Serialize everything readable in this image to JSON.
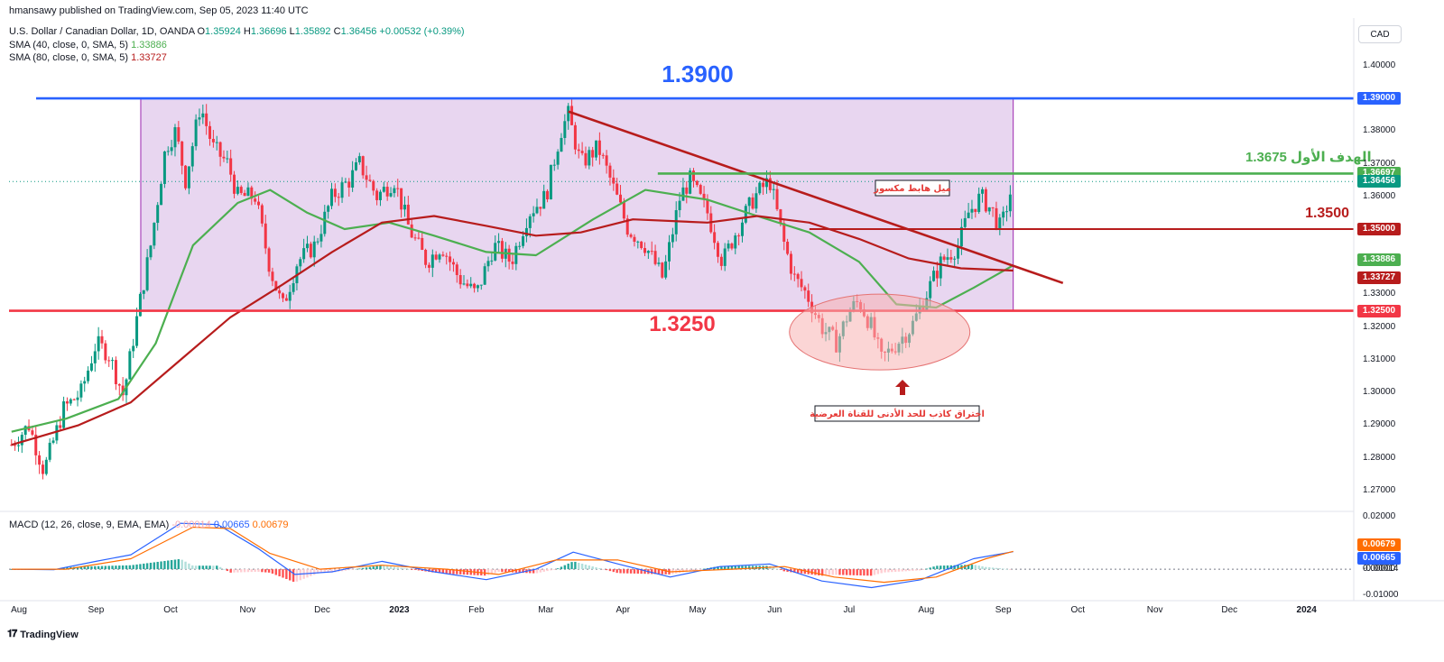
{
  "header": {
    "published": "hmansawy published on TradingView.com, Sep 05, 2023 11:40 UTC",
    "symbol": "U.S. Dollar / Canadian Dollar, 1D, OANDA",
    "o_label": "O",
    "o": "1.35924",
    "h_label": "H",
    "h": "1.36696",
    "l_label": "L",
    "l": "1.35892",
    "c_label": "C",
    "c": "1.36456",
    "change": "+0.00532 (+0.39%)",
    "sma40_label": "SMA (40, close, 0, SMA, 5)",
    "sma40_value": "1.33886",
    "sma80_label": "SMA (80, close, 0, SMA, 5)",
    "sma80_value": "1.33727",
    "macd_label": "MACD (12, 26, close, 9, EMA, EMA)",
    "macd_hist": "-0.00014",
    "macd_line": "0.00665",
    "macd_signal": "0.00679"
  },
  "currency_button": "CAD",
  "brand": "TradingView",
  "colors": {
    "up": "#089981",
    "down": "#f23645",
    "channel_fill": "#d6b4e4",
    "line_1390": "#2962ff",
    "line_13675": "#4caf50",
    "line_1350": "#b71c1c",
    "line_1325": "#f23645",
    "sma40": "#4caf50",
    "sma80": "#b71c1c",
    "trendline": "#b71c1c",
    "macd": "#2962ff",
    "signal": "#ff6d00"
  },
  "chart_data": {
    "type": "candlestick",
    "y_axis": {
      "range": [
        1.265,
        1.403
      ],
      "ticks": [
        "1.40000",
        "1.39000",
        "1.38000",
        "1.37000",
        "1.36000",
        "1.35000",
        "1.34000",
        "1.33000",
        "1.32000",
        "1.31000",
        "1.30000",
        "1.29000",
        "1.28000",
        "1.27000"
      ]
    },
    "x_axis": {
      "ticks": [
        {
          "label": "Aug",
          "date": "2022-08-01"
        },
        {
          "label": "Sep",
          "date": "2022-09-01"
        },
        {
          "label": "Oct",
          "date": "2022-10-01"
        },
        {
          "label": "Nov",
          "date": "2022-11-01"
        },
        {
          "label": "Dec",
          "date": "2022-12-01"
        },
        {
          "label": "2023",
          "date": "2023-01-01",
          "bold": true
        },
        {
          "label": "Feb",
          "date": "2023-02-01"
        },
        {
          "label": "Mar",
          "date": "2023-03-01"
        },
        {
          "label": "Apr",
          "date": "2023-04-01"
        },
        {
          "label": "May",
          "date": "2023-05-01"
        },
        {
          "label": "Jun",
          "date": "2023-06-01"
        },
        {
          "label": "Jul",
          "date": "2023-07-01"
        },
        {
          "label": "Aug",
          "date": "2023-08-01"
        },
        {
          "label": "Sep",
          "date": "2023-09-01"
        },
        {
          "label": "Oct",
          "date": "2023-10-01"
        },
        {
          "label": "Nov",
          "date": "2023-11-01"
        },
        {
          "label": "Dec",
          "date": "2023-12-01"
        },
        {
          "label": "2024",
          "date": "2024-01-01",
          "bold": true
        }
      ]
    },
    "price_path": [
      [
        "2022-07-29",
        1.284
      ],
      [
        "2022-08-05",
        1.29
      ],
      [
        "2022-08-11",
        1.276
      ],
      [
        "2022-08-19",
        1.295
      ],
      [
        "2022-08-26",
        1.3
      ],
      [
        "2022-09-01",
        1.315
      ],
      [
        "2022-09-06",
        1.312
      ],
      [
        "2022-09-12",
        1.299
      ],
      [
        "2022-09-18",
        1.325
      ],
      [
        "2022-09-23",
        1.345
      ],
      [
        "2022-09-29",
        1.375
      ],
      [
        "2022-10-03",
        1.38
      ],
      [
        "2022-10-07",
        1.365
      ],
      [
        "2022-10-13",
        1.388
      ],
      [
        "2022-10-18",
        1.375
      ],
      [
        "2022-10-24",
        1.37
      ],
      [
        "2022-10-28",
        1.36
      ],
      [
        "2022-11-04",
        1.36
      ],
      [
        "2022-11-10",
        1.338
      ],
      [
        "2022-11-15",
        1.326
      ],
      [
        "2022-11-21",
        1.34
      ],
      [
        "2022-11-28",
        1.345
      ],
      [
        "2022-12-05",
        1.36
      ],
      [
        "2022-12-12",
        1.365
      ],
      [
        "2022-12-16",
        1.37
      ],
      [
        "2022-12-23",
        1.36
      ],
      [
        "2022-12-30",
        1.365
      ],
      [
        "2023-01-05",
        1.35
      ],
      [
        "2023-01-12",
        1.34
      ],
      [
        "2023-01-18",
        1.345
      ],
      [
        "2023-01-25",
        1.335
      ],
      [
        "2023-02-01",
        1.33
      ],
      [
        "2023-02-08",
        1.345
      ],
      [
        "2023-02-15",
        1.34
      ],
      [
        "2023-02-22",
        1.355
      ],
      [
        "2023-03-01",
        1.36
      ],
      [
        "2023-03-07",
        1.38
      ],
      [
        "2023-03-10",
        1.385
      ],
      [
        "2023-03-15",
        1.37
      ],
      [
        "2023-03-22",
        1.375
      ],
      [
        "2023-03-27",
        1.365
      ],
      [
        "2023-04-03",
        1.35
      ],
      [
        "2023-04-10",
        1.345
      ],
      [
        "2023-04-17",
        1.335
      ],
      [
        "2023-04-24",
        1.36
      ],
      [
        "2023-04-28",
        1.365
      ],
      [
        "2023-05-05",
        1.355
      ],
      [
        "2023-05-11",
        1.34
      ],
      [
        "2023-05-17",
        1.35
      ],
      [
        "2023-05-24",
        1.36
      ],
      [
        "2023-05-30",
        1.365
      ],
      [
        "2023-06-05",
        1.345
      ],
      [
        "2023-06-09",
        1.335
      ],
      [
        "2023-06-14",
        1.33
      ],
      [
        "2023-06-20",
        1.32
      ],
      [
        "2023-06-26",
        1.315
      ],
      [
        "2023-07-01",
        1.325
      ],
      [
        "2023-07-05",
        1.328
      ],
      [
        "2023-07-10",
        1.32
      ],
      [
        "2023-07-14",
        1.31
      ],
      [
        "2023-07-20",
        1.315
      ],
      [
        "2023-07-26",
        1.32
      ],
      [
        "2023-08-01",
        1.33
      ],
      [
        "2023-08-07",
        1.34
      ],
      [
        "2023-08-14",
        1.345
      ],
      [
        "2023-08-18",
        1.355
      ],
      [
        "2023-08-23",
        1.36
      ],
      [
        "2023-08-28",
        1.355
      ],
      [
        "2023-08-31",
        1.35
      ],
      [
        "2023-09-05",
        1.3645
      ]
    ],
    "sma40": [
      [
        "2022-07-29",
        1.288
      ],
      [
        "2022-08-20",
        1.292
      ],
      [
        "2022-09-10",
        1.298
      ],
      [
        "2022-09-25",
        1.315
      ],
      [
        "2022-10-10",
        1.345
      ],
      [
        "2022-10-28",
        1.358
      ],
      [
        "2022-11-10",
        1.362
      ],
      [
        "2022-11-25",
        1.355
      ],
      [
        "2022-12-10",
        1.35
      ],
      [
        "2022-12-28",
        1.352
      ],
      [
        "2023-01-15",
        1.348
      ],
      [
        "2023-02-05",
        1.343
      ],
      [
        "2023-02-25",
        1.342
      ],
      [
        "2023-03-20",
        1.353
      ],
      [
        "2023-04-10",
        1.362
      ],
      [
        "2023-05-05",
        1.359
      ],
      [
        "2023-05-25",
        1.354
      ],
      [
        "2023-06-15",
        1.349
      ],
      [
        "2023-07-05",
        1.34
      ],
      [
        "2023-07-20",
        1.327
      ],
      [
        "2023-08-05",
        1.326
      ],
      [
        "2023-08-20",
        1.332
      ],
      [
        "2023-09-05",
        1.3389
      ]
    ],
    "sma80": [
      [
        "2022-07-29",
        1.284
      ],
      [
        "2022-08-25",
        1.29
      ],
      [
        "2022-09-15",
        1.297
      ],
      [
        "2022-10-05",
        1.31
      ],
      [
        "2022-10-25",
        1.323
      ],
      [
        "2022-11-15",
        1.333
      ],
      [
        "2022-12-05",
        1.343
      ],
      [
        "2022-12-25",
        1.352
      ],
      [
        "2023-01-15",
        1.354
      ],
      [
        "2023-02-05",
        1.351
      ],
      [
        "2023-02-25",
        1.348
      ],
      [
        "2023-03-15",
        1.349
      ],
      [
        "2023-04-05",
        1.353
      ],
      [
        "2023-05-05",
        1.352
      ],
      [
        "2023-05-25",
        1.354
      ],
      [
        "2023-06-15",
        1.352
      ],
      [
        "2023-07-05",
        1.347
      ],
      [
        "2023-07-25",
        1.341
      ],
      [
        "2023-08-15",
        1.338
      ],
      [
        "2023-09-05",
        1.3373
      ]
    ],
    "macd_axis": {
      "range": [
        -0.012,
        0.021
      ],
      "ticks": [
        "0.02000",
        "0.01000",
        "0.00000",
        "-0.01000"
      ]
    },
    "macd_line": [
      [
        "2022-07-29",
        0.0
      ],
      [
        "2022-08-15",
        -0.0002
      ],
      [
        "2022-09-01",
        0.003
      ],
      [
        "2022-09-15",
        0.0055
      ],
      [
        "2022-10-05",
        0.0175
      ],
      [
        "2022-10-20",
        0.017
      ],
      [
        "2022-11-05",
        0.008
      ],
      [
        "2022-11-20",
        -0.002
      ],
      [
        "2022-12-05",
        -0.001
      ],
      [
        "2022-12-25",
        0.003
      ],
      [
        "2023-01-15",
        -0.001
      ],
      [
        "2023-02-05",
        -0.004
      ],
      [
        "2023-02-25",
        0.0
      ],
      [
        "2023-03-12",
        0.0065
      ],
      [
        "2023-03-30",
        0.002
      ],
      [
        "2023-04-20",
        -0.003
      ],
      [
        "2023-05-10",
        0.001
      ],
      [
        "2023-05-30",
        0.002
      ],
      [
        "2023-06-20",
        -0.0045
      ],
      [
        "2023-07-10",
        -0.007
      ],
      [
        "2023-07-30",
        -0.004
      ],
      [
        "2023-08-20",
        0.004
      ],
      [
        "2023-09-05",
        0.00665
      ]
    ],
    "signal_line": [
      [
        "2022-07-29",
        0.0
      ],
      [
        "2022-08-20",
        0.0
      ],
      [
        "2022-09-15",
        0.004
      ],
      [
        "2022-10-10",
        0.016
      ],
      [
        "2022-10-25",
        0.0155
      ],
      [
        "2022-11-10",
        0.006
      ],
      [
        "2022-11-30",
        0.0
      ],
      [
        "2022-12-25",
        0.0015
      ],
      [
        "2023-01-20",
        0.0
      ],
      [
        "2023-02-10",
        -0.002
      ],
      [
        "2023-03-05",
        0.0035
      ],
      [
        "2023-03-30",
        0.0035
      ],
      [
        "2023-04-20",
        -0.001
      ],
      [
        "2023-05-15",
        0.0
      ],
      [
        "2023-06-05",
        0.001
      ],
      [
        "2023-06-25",
        -0.003
      ],
      [
        "2023-07-15",
        -0.005
      ],
      [
        "2023-08-05",
        -0.003
      ],
      [
        "2023-08-25",
        0.004
      ],
      [
        "2023-09-05",
        0.00679
      ]
    ],
    "levels": [
      {
        "id": "l1390",
        "value": 1.39,
        "label": "1.3900",
        "tag": "1.39000",
        "from": "2022-07-29",
        "to": "2023-09-05"
      },
      {
        "id": "l13675",
        "value": 1.367,
        "label": "1.3675 الهدف الأول",
        "tag": "1.36697",
        "from": "2023-04-15",
        "to": "2023-09-05"
      },
      {
        "id": "l1350",
        "value": 1.35,
        "label": "1.3500",
        "tag": "1.35000",
        "from": "2023-06-15",
        "to": "2023-09-05"
      },
      {
        "id": "l1325",
        "value": 1.325,
        "label": "1.3250",
        "tag": "1.32500",
        "from": "2022-07-29",
        "to": "2023-09-05"
      }
    ],
    "price_tags": [
      {
        "value": 1.36456,
        "tag": "1.36456"
      },
      {
        "value": 1.33886,
        "tag": "1.33886"
      },
      {
        "value": 1.33727,
        "tag": "1.33727"
      }
    ],
    "macd_tags": [
      {
        "value": 0.00679,
        "tag": "0.00679"
      },
      {
        "value": 0.00665,
        "tag": "0.00665"
      },
      {
        "value": -0.00014,
        "tag": "-0.00014"
      }
    ],
    "channel": {
      "from": "2022-09-19",
      "to": "2023-09-05",
      "low": 1.325,
      "high": 1.39
    },
    "trendline": {
      "from": [
        "2023-03-10",
        1.386
      ],
      "to": [
        "2023-09-25",
        1.3335
      ]
    },
    "annotations": {
      "broken_trend": "ميل هابط مكسور",
      "false_breakout": "اختراق كاذب للحد الأدنى للقناة العرضية",
      "ellipse_center": [
        "2023-07-14",
        1.3185
      ]
    }
  }
}
